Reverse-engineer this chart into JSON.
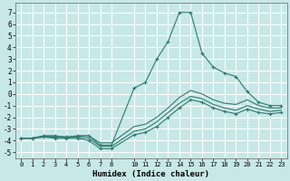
{
  "xlabel": "Humidex (Indice chaleur)",
  "bg_color": "#c8e8e8",
  "grid_color": "#ffffff",
  "line_color": "#2d7a6e",
  "xlim": [
    -0.5,
    23.5
  ],
  "ylim": [
    -5.5,
    7.8
  ],
  "xticks": [
    0,
    1,
    2,
    3,
    4,
    5,
    6,
    7,
    8,
    10,
    11,
    12,
    13,
    14,
    15,
    16,
    17,
    18,
    19,
    20,
    21,
    22,
    23
  ],
  "yticks": [
    -5,
    -4,
    -3,
    -2,
    -1,
    0,
    1,
    2,
    3,
    4,
    5,
    6,
    7
  ],
  "series": [
    {
      "x": [
        0,
        1,
        2,
        3,
        4,
        5,
        6,
        7,
        8,
        10,
        11,
        12,
        13,
        14,
        15,
        16,
        17,
        18,
        19,
        20,
        21,
        22,
        23
      ],
      "y": [
        -3.8,
        -3.8,
        -3.6,
        -3.6,
        -3.7,
        -3.6,
        -3.6,
        -4.4,
        -4.4,
        0.5,
        1.0,
        3.0,
        4.5,
        7.0,
        7.0,
        3.5,
        2.3,
        1.8,
        1.5,
        0.2,
        -0.7,
        -1.0,
        -1.0
      ],
      "marker": true
    },
    {
      "x": [
        0,
        1,
        2,
        3,
        4,
        5,
        6,
        7,
        8,
        10,
        11,
        12,
        13,
        14,
        15,
        16,
        17,
        18,
        19,
        20,
        21,
        22,
        23
      ],
      "y": [
        -3.8,
        -3.8,
        -3.6,
        -3.6,
        -3.7,
        -3.6,
        -3.6,
        -4.2,
        -4.2,
        -2.8,
        -2.6,
        -2.0,
        -1.2,
        -0.3,
        0.3,
        0.0,
        -0.5,
        -0.8,
        -0.9,
        -0.5,
        -1.0,
        -1.2,
        -1.2
      ],
      "marker": false
    },
    {
      "x": [
        0,
        1,
        2,
        3,
        4,
        5,
        6,
        7,
        8,
        10,
        11,
        12,
        13,
        14,
        15,
        16,
        17,
        18,
        19,
        20,
        21,
        22,
        23
      ],
      "y": [
        -3.8,
        -3.8,
        -3.7,
        -3.7,
        -3.8,
        -3.7,
        -3.8,
        -4.5,
        -4.5,
        -3.2,
        -3.0,
        -2.4,
        -1.6,
        -0.8,
        -0.2,
        -0.4,
        -0.9,
        -1.2,
        -1.4,
        -1.0,
        -1.3,
        -1.5,
        -1.4
      ],
      "marker": false
    },
    {
      "x": [
        0,
        1,
        2,
        3,
        4,
        5,
        6,
        7,
        8,
        10,
        11,
        12,
        13,
        14,
        15,
        16,
        17,
        18,
        19,
        20,
        21,
        22,
        23
      ],
      "y": [
        -3.8,
        -3.8,
        -3.7,
        -3.8,
        -3.8,
        -3.8,
        -4.0,
        -4.7,
        -4.7,
        -3.5,
        -3.3,
        -2.8,
        -2.0,
        -1.2,
        -0.5,
        -0.7,
        -1.2,
        -1.5,
        -1.7,
        -1.3,
        -1.6,
        -1.7,
        -1.6
      ],
      "marker": true
    }
  ]
}
